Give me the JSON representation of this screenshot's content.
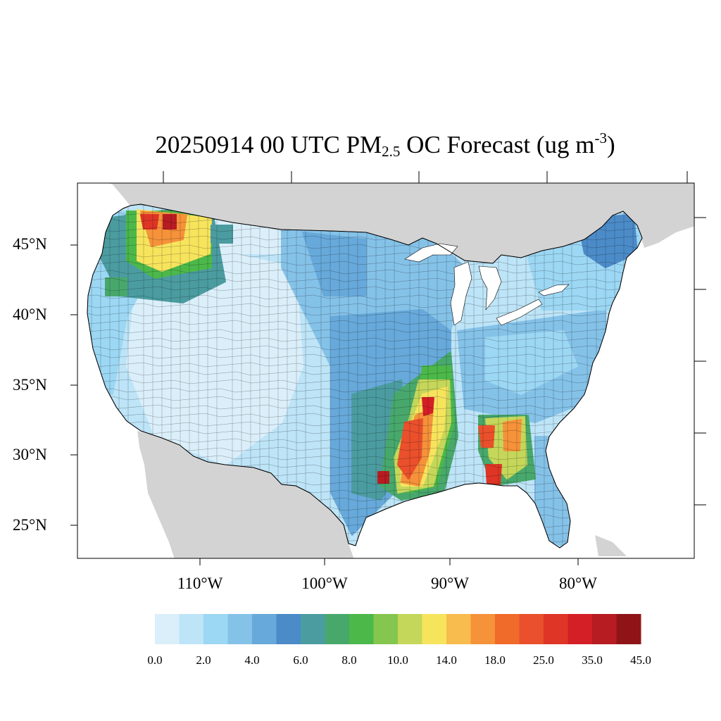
{
  "title": {
    "prefix": "20250914 00 UTC PM",
    "subscript": "2.5",
    "middle": " OC Forecast (ug m",
    "superscript": "-3",
    "suffix": ")"
  },
  "latitude_labels": [
    "45°N",
    "40°N",
    "35°N",
    "30°N",
    "25°N"
  ],
  "longitude_labels": [
    "110°W",
    "100°W",
    "90°W",
    "80°W"
  ],
  "colorbar": {
    "colors": [
      "#dbeffa",
      "#bde4f7",
      "#9cd7f4",
      "#85c2e8",
      "#67a9da",
      "#4b8bc8",
      "#4b9ca0",
      "#48a86c",
      "#4cb84a",
      "#85c64e",
      "#c5d75a",
      "#f7e45d",
      "#f8bb4d",
      "#f5923a",
      "#f06a2a",
      "#e9502b",
      "#de3526",
      "#d41f26",
      "#b71c22",
      "#8e1418"
    ],
    "tick_labels": [
      "0.0",
      "2.0",
      "4.0",
      "6.0",
      "8.0",
      "10.0",
      "14.0",
      "18.0",
      "25.0",
      "35.0",
      "45.0"
    ]
  },
  "map_colors": {
    "land_outside": "#d3d3d3",
    "water": "#ffffff",
    "border": "#000000"
  }
}
